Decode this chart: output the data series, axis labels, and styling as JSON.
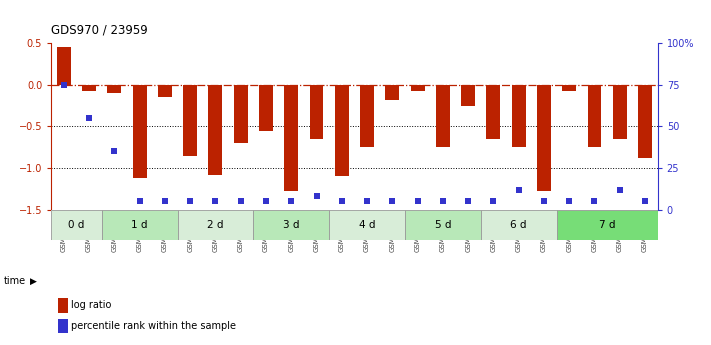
{
  "title": "GDS970 / 23959",
  "samples": [
    "GSM21882",
    "GSM21883",
    "GSM21884",
    "GSM21885",
    "GSM21886",
    "GSM21887",
    "GSM21888",
    "GSM21889",
    "GSM21890",
    "GSM21891",
    "GSM21892",
    "GSM21893",
    "GSM21894",
    "GSM21895",
    "GSM21896",
    "GSM21897",
    "GSM21898",
    "GSM21899",
    "GSM21900",
    "GSM21901",
    "GSM21902",
    "GSM21903",
    "GSM21904",
    "GSM21905"
  ],
  "log_ratio": [
    0.45,
    -0.07,
    -0.1,
    -1.12,
    -0.15,
    -0.85,
    -1.08,
    -0.7,
    -0.55,
    -1.28,
    -0.65,
    -1.1,
    -0.75,
    -0.18,
    -0.07,
    -0.75,
    -0.25,
    -0.65,
    -0.75,
    -1.28,
    -0.07,
    -0.75,
    -0.65,
    -0.88
  ],
  "percentile": [
    75,
    55,
    35,
    5,
    5,
    5,
    5,
    5,
    5,
    5,
    8,
    5,
    5,
    5,
    5,
    5,
    5,
    5,
    12,
    5,
    5,
    5,
    12,
    5
  ],
  "bar_color": "#bb2200",
  "dot_color": "#3333cc",
  "ylim_left": [
    -1.5,
    0.5
  ],
  "ylim_right": [
    0,
    100
  ],
  "yticks_left": [
    0.5,
    0.0,
    -0.5,
    -1.0,
    -1.5
  ],
  "yticks_right": [
    100,
    75,
    50,
    25,
    0
  ],
  "ytick_labels_right": [
    "100%",
    "75",
    "50",
    "25",
    "0"
  ],
  "hline_y": 0.0,
  "dotline1": -0.5,
  "dotline2": -1.0,
  "time_groups": [
    {
      "label": "0 d",
      "start": 0,
      "end": 2,
      "color": "#d8edd8"
    },
    {
      "label": "1 d",
      "start": 2,
      "end": 5,
      "color": "#b8e8b8"
    },
    {
      "label": "2 d",
      "start": 5,
      "end": 8,
      "color": "#d8edd8"
    },
    {
      "label": "3 d",
      "start": 8,
      "end": 11,
      "color": "#b8e8b8"
    },
    {
      "label": "4 d",
      "start": 11,
      "end": 14,
      "color": "#d8edd8"
    },
    {
      "label": "5 d",
      "start": 14,
      "end": 17,
      "color": "#b8e8b8"
    },
    {
      "label": "6 d",
      "start": 17,
      "end": 20,
      "color": "#d8edd8"
    },
    {
      "label": "7 d",
      "start": 20,
      "end": 24,
      "color": "#77dd77"
    }
  ],
  "legend_red": "log ratio",
  "legend_blue": "percentile rank within the sample",
  "bar_width": 0.55
}
